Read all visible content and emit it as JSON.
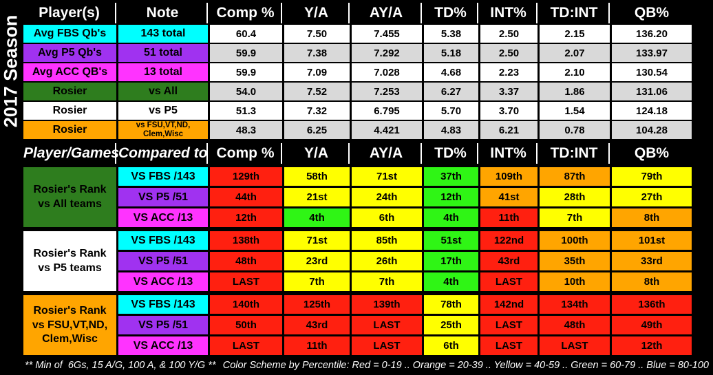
{
  "season_label": "2017 Season",
  "colors": {
    "cyan": "#00FFFF",
    "purple": "#A032F0",
    "magenta": "#FF33FF",
    "green_dark": "#2E7D1E",
    "orange": "#FFA500",
    "white": "#FFFFFF",
    "gray": "#D9D9D9",
    "red": "#FF2010",
    "yellow": "#FFFF00",
    "green": "#2FF515"
  },
  "chart_data": [
    {
      "type": "table",
      "name": "season-averages",
      "headers": [
        "Player(s)",
        "Note",
        "Comp %",
        "Y/A",
        "AY/A",
        "TD%",
        "INT%",
        "TD:INT",
        "QB%"
      ],
      "rows": [
        {
          "player": "Avg FBS Qb's",
          "note": "143 total",
          "label_color": "cyan",
          "value_color": "white",
          "values": [
            "60.4",
            "7.50",
            "7.455",
            "5.38",
            "2.50",
            "2.15",
            "136.20"
          ]
        },
        {
          "player": "Avg P5 Qb's",
          "note": "51 total",
          "label_color": "purple",
          "value_color": "gray",
          "values": [
            "59.9",
            "7.38",
            "7.292",
            "5.18",
            "2.50",
            "2.07",
            "133.97"
          ]
        },
        {
          "player": "Avg ACC QB's",
          "note": "13 total",
          "label_color": "magenta",
          "value_color": "white",
          "values": [
            "59.9",
            "7.09",
            "7.028",
            "4.68",
            "2.23",
            "2.10",
            "130.54"
          ]
        },
        {
          "player": "Rosier",
          "note": "vs All",
          "label_color": "green_dark",
          "value_color": "gray",
          "values": [
            "54.0",
            "7.52",
            "7.253",
            "6.27",
            "3.37",
            "1.86",
            "131.06"
          ]
        },
        {
          "player": "Rosier",
          "note": "vs P5",
          "label_color": "white",
          "value_color": "white",
          "values": [
            "51.3",
            "7.32",
            "6.795",
            "5.70",
            "3.70",
            "1.54",
            "124.18"
          ]
        },
        {
          "player": "Rosier",
          "note": "vs FSU,VT,ND,\nClem,Wisc",
          "label_color": "orange",
          "value_color": "gray",
          "values": [
            "48.3",
            "6.25",
            "4.421",
            "4.83",
            "6.21",
            "0.78",
            "104.28"
          ]
        }
      ]
    },
    {
      "type": "table",
      "name": "rosier-percentile-ranks",
      "headers": [
        "Player/Games",
        "Compared to",
        "Comp %",
        "Y/A",
        "AY/A",
        "TD%",
        "INT%",
        "TD:INT",
        "QB%"
      ],
      "groups": [
        {
          "label": "Rosier's Rank\nvs All teams",
          "label_color": "green_dark",
          "rows": [
            {
              "compared_to": "VS FBS /143",
              "compared_color": "cyan",
              "cells": [
                {
                  "text": "129th",
                  "color": "red"
                },
                {
                  "text": "58th",
                  "color": "yellow"
                },
                {
                  "text": "71st",
                  "color": "yellow"
                },
                {
                  "text": "37th",
                  "color": "green"
                },
                {
                  "text": "109th",
                  "color": "orange"
                },
                {
                  "text": "87th",
                  "color": "orange"
                },
                {
                  "text": "79th",
                  "color": "yellow"
                }
              ]
            },
            {
              "compared_to": "VS P5 /51",
              "compared_color": "purple",
              "cells": [
                {
                  "text": "44th",
                  "color": "red"
                },
                {
                  "text": "21st",
                  "color": "yellow"
                },
                {
                  "text": "24th",
                  "color": "yellow"
                },
                {
                  "text": "12th",
                  "color": "green"
                },
                {
                  "text": "41st",
                  "color": "orange"
                },
                {
                  "text": "28th",
                  "color": "yellow"
                },
                {
                  "text": "27th",
                  "color": "yellow"
                }
              ]
            },
            {
              "compared_to": "VS ACC /13",
              "compared_color": "magenta",
              "cells": [
                {
                  "text": "12th",
                  "color": "red"
                },
                {
                  "text": "4th",
                  "color": "green"
                },
                {
                  "text": "6th",
                  "color": "yellow"
                },
                {
                  "text": "4th",
                  "color": "green"
                },
                {
                  "text": "11th",
                  "color": "red"
                },
                {
                  "text": "7th",
                  "color": "yellow"
                },
                {
                  "text": "8th",
                  "color": "orange"
                }
              ]
            }
          ]
        },
        {
          "label": "Rosier's Rank\nvs P5 teams",
          "label_color": "white",
          "rows": [
            {
              "compared_to": "VS FBS /143",
              "compared_color": "cyan",
              "cells": [
                {
                  "text": "138th",
                  "color": "red"
                },
                {
                  "text": "71st",
                  "color": "yellow"
                },
                {
                  "text": "85th",
                  "color": "yellow"
                },
                {
                  "text": "51st",
                  "color": "green"
                },
                {
                  "text": "122nd",
                  "color": "red"
                },
                {
                  "text": "100th",
                  "color": "orange"
                },
                {
                  "text": "101st",
                  "color": "orange"
                }
              ]
            },
            {
              "compared_to": "VS P5 /51",
              "compared_color": "purple",
              "cells": [
                {
                  "text": "48th",
                  "color": "red"
                },
                {
                  "text": "23rd",
                  "color": "yellow"
                },
                {
                  "text": "26th",
                  "color": "yellow"
                },
                {
                  "text": "17th",
                  "color": "green"
                },
                {
                  "text": "43rd",
                  "color": "red"
                },
                {
                  "text": "35th",
                  "color": "orange"
                },
                {
                  "text": "33rd",
                  "color": "orange"
                }
              ]
            },
            {
              "compared_to": "VS ACC /13",
              "compared_color": "magenta",
              "cells": [
                {
                  "text": "LAST",
                  "color": "red"
                },
                {
                  "text": "7th",
                  "color": "yellow"
                },
                {
                  "text": "7th",
                  "color": "yellow"
                },
                {
                  "text": "4th",
                  "color": "green"
                },
                {
                  "text": "LAST",
                  "color": "red"
                },
                {
                  "text": "10th",
                  "color": "orange"
                },
                {
                  "text": "8th",
                  "color": "orange"
                }
              ]
            }
          ]
        },
        {
          "label": "Rosier's Rank\nvs FSU,VT,ND,\nClem,Wisc",
          "label_color": "orange",
          "rows": [
            {
              "compared_to": "VS FBS /143",
              "compared_color": "cyan",
              "cells": [
                {
                  "text": "140th",
                  "color": "red"
                },
                {
                  "text": "125th",
                  "color": "red"
                },
                {
                  "text": "139th",
                  "color": "red"
                },
                {
                  "text": "78th",
                  "color": "yellow"
                },
                {
                  "text": "142nd",
                  "color": "red"
                },
                {
                  "text": "134th",
                  "color": "red"
                },
                {
                  "text": "136th",
                  "color": "red"
                }
              ]
            },
            {
              "compared_to": "VS P5 /51",
              "compared_color": "purple",
              "cells": [
                {
                  "text": "50th",
                  "color": "red"
                },
                {
                  "text": "43rd",
                  "color": "red"
                },
                {
                  "text": "LAST",
                  "color": "red"
                },
                {
                  "text": "25th",
                  "color": "yellow"
                },
                {
                  "text": "LAST",
                  "color": "red"
                },
                {
                  "text": "48th",
                  "color": "red"
                },
                {
                  "text": "49th",
                  "color": "red"
                }
              ]
            },
            {
              "compared_to": "VS ACC /13",
              "compared_color": "magenta",
              "cells": [
                {
                  "text": "LAST",
                  "color": "red"
                },
                {
                  "text": "11th",
                  "color": "red"
                },
                {
                  "text": "LAST",
                  "color": "red"
                },
                {
                  "text": "6th",
                  "color": "yellow"
                },
                {
                  "text": "LAST",
                  "color": "red"
                },
                {
                  "text": "LAST",
                  "color": "red"
                },
                {
                  "text": "12th",
                  "color": "red"
                }
              ]
            }
          ]
        }
      ]
    }
  ],
  "footer": {
    "min_note": "** Min of  6Gs, 15 A/G, 100 A, & 100 Y/G **",
    "color_scheme": "Color Scheme by Percentile: Red = 0-19 .. Orange = 20-39 .. Yellow = 40-59 .. Green = 60-79 .. Blue = 80-100"
  }
}
